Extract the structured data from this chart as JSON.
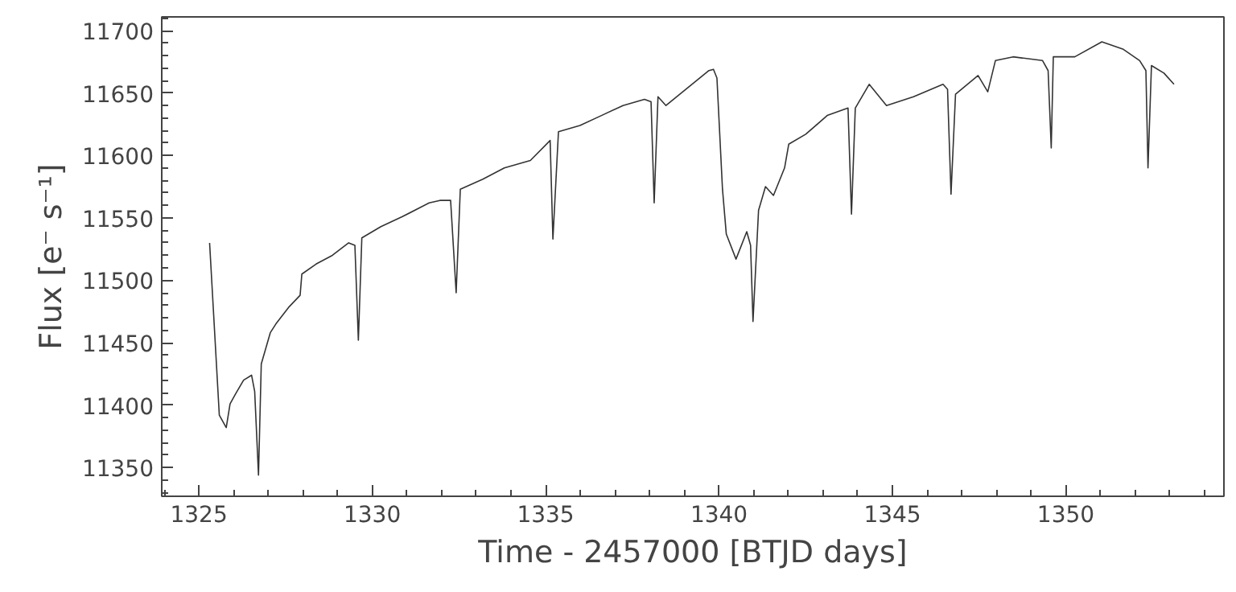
{
  "chart_data": {
    "type": "line",
    "xlabel": "Time - 2457000 [BTJD days]",
    "ylabel": "Flux [e⁻ s⁻¹]",
    "x": [
      1325.31,
      1325.59,
      1325.79,
      1325.9,
      1326.06,
      1326.29,
      1326.52,
      1326.61,
      1326.72,
      1326.8,
      1327.06,
      1327.22,
      1327.61,
      1327.92,
      1327.97,
      1328.38,
      1328.85,
      1329.32,
      1329.5,
      1329.6,
      1329.7,
      1330.25,
      1330.87,
      1331.64,
      1331.95,
      1332.26,
      1332.42,
      1332.54,
      1333.19,
      1333.81,
      1334.56,
      1335.13,
      1335.21,
      1335.37,
      1335.99,
      1336.61,
      1337.23,
      1337.85,
      1338.04,
      1338.13,
      1338.24,
      1338.47,
      1339.71,
      1339.84,
      1339.94,
      1340.1,
      1340.21,
      1340.49,
      1340.8,
      1340.91,
      1340.98,
      1341.14,
      1341.34,
      1341.57,
      1341.89,
      1342.01,
      1342.5,
      1343.12,
      1343.72,
      1343.82,
      1343.93,
      1344.33,
      1344.83,
      1345.61,
      1346.46,
      1346.59,
      1346.69,
      1346.82,
      1347.47,
      1347.75,
      1347.97,
      1348.48,
      1349.33,
      1349.49,
      1349.58,
      1349.64,
      1350.26,
      1351.04,
      1351.66,
      1352.13,
      1352.31,
      1352.37,
      1352.47,
      1352.83,
      1353.12
    ],
    "series": [
      {
        "color": "#333333",
        "values": [
          11530,
          11392,
          11382,
          11401,
          11409,
          11420,
          11424,
          11411,
          11344,
          11433,
          11458,
          11465,
          11479,
          11488,
          11505,
          11513,
          11520,
          11530,
          11528,
          11452,
          11534,
          11543,
          11551,
          11562,
          11564,
          11564,
          11490,
          11573,
          11581,
          11590,
          11596,
          11612,
          11533,
          11619,
          11624,
          11632,
          11640,
          11645,
          11643,
          11562,
          11647,
          11640,
          11668,
          11669,
          11662,
          11573,
          11537,
          11517,
          11539,
          11528,
          11467,
          11556,
          11575,
          11568,
          11590,
          11609,
          11617,
          11632,
          11638,
          11553,
          11638,
          11657,
          11640,
          11647,
          11657,
          11653,
          11569,
          11649,
          11664,
          11651,
          11676,
          11679,
          11676,
          11668,
          11606,
          11679,
          11679,
          11691,
          11685,
          11676,
          11668,
          11590,
          11672,
          11666,
          11657
        ]
      }
    ],
    "xlim": [
      1323.93,
      1354.56
    ],
    "ylim": [
      11327,
      11711
    ],
    "xticks": [
      {
        "value": 1324,
        "label": null
      },
      1325,
      {
        "value": 1326,
        "label": null
      },
      {
        "value": 1327,
        "label": null
      },
      {
        "value": 1328,
        "label": null
      },
      {
        "value": 1329,
        "label": null
      },
      1330,
      {
        "value": 1331,
        "label": null
      },
      {
        "value": 1332,
        "label": null
      },
      {
        "value": 1333,
        "label": null
      },
      {
        "value": 1334,
        "label": null
      },
      1335,
      {
        "value": 1336,
        "label": null
      },
      {
        "value": 1337,
        "label": null
      },
      {
        "value": 1338,
        "label": null
      },
      {
        "value": 1339,
        "label": null
      },
      1340,
      {
        "value": 1341,
        "label": null
      },
      {
        "value": 1342,
        "label": null
      },
      {
        "value": 1343,
        "label": null
      },
      {
        "value": 1344,
        "label": null
      },
      1345,
      {
        "value": 1346,
        "label": null
      },
      {
        "value": 1347,
        "label": null
      },
      {
        "value": 1348,
        "label": null
      },
      {
        "value": 1349,
        "label": null
      },
      1350,
      {
        "value": 1351,
        "label": null
      },
      {
        "value": 1352,
        "label": null
      },
      {
        "value": 1353,
        "label": null
      },
      {
        "value": 1354,
        "label": null
      }
    ],
    "yticks": [
      {
        "value": 11330,
        "label": null
      },
      {
        "value": 11340,
        "label": null
      },
      11350,
      {
        "value": 11360,
        "label": null
      },
      {
        "value": 11370,
        "label": null
      },
      {
        "value": 11380,
        "label": null
      },
      {
        "value": 11390,
        "label": null
      },
      11400,
      {
        "value": 11410,
        "label": null
      },
      {
        "value": 11420,
        "label": null
      },
      {
        "value": 11430,
        "label": null
      },
      {
        "value": 11440,
        "label": null
      },
      11450,
      {
        "value": 11460,
        "label": null
      },
      {
        "value": 11470,
        "label": null
      },
      {
        "value": 11480,
        "label": null
      },
      {
        "value": 11490,
        "label": null
      },
      11500,
      {
        "value": 11510,
        "label": null
      },
      {
        "value": 11520,
        "label": null
      },
      {
        "value": 11530,
        "label": null
      },
      {
        "value": 11540,
        "label": null
      },
      11550,
      {
        "value": 11560,
        "label": null
      },
      {
        "value": 11570,
        "label": null
      },
      {
        "value": 11580,
        "label": null
      },
      {
        "value": 11590,
        "label": null
      },
      11600,
      {
        "value": 11610,
        "label": null
      },
      {
        "value": 11620,
        "label": null
      },
      {
        "value": 11630,
        "label": null
      },
      {
        "value": 11640,
        "label": null
      },
      11650,
      {
        "value": 11660,
        "label": null
      },
      {
        "value": 11670,
        "label": null
      },
      {
        "value": 11680,
        "label": null
      },
      {
        "value": 11690,
        "label": null
      },
      11700,
      {
        "value": 11710,
        "label": null
      }
    ],
    "grid": false,
    "marker": "none",
    "line_style": "solid"
  }
}
